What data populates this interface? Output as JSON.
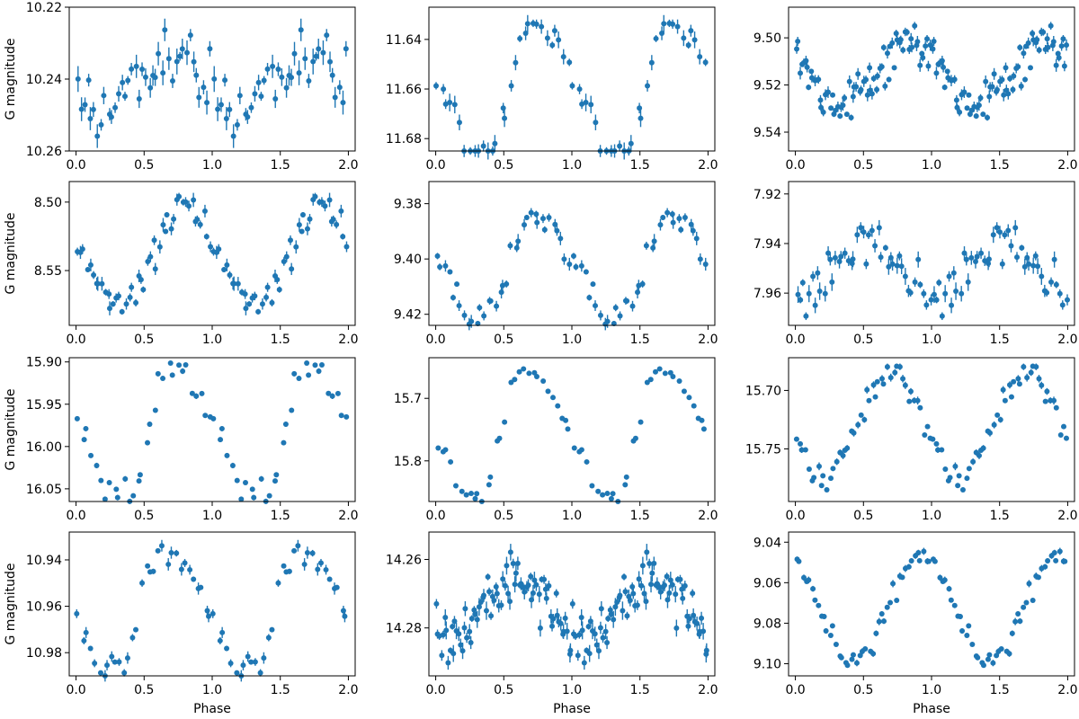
{
  "figure": {
    "xlabel": "Phase",
    "ylabel": "G magnitude",
    "point_color": "#1f77b4"
  },
  "chart_data": [
    {
      "type": "scatter",
      "row": 0,
      "col": 0,
      "xlim": [
        -0.05,
        2.05
      ],
      "ylim": [
        10.22,
        10.26
      ],
      "inverted_y": true,
      "x_ticks": [
        0,
        0.5,
        1,
        1.5,
        2
      ],
      "x_tick_labels": [
        "0.0",
        "0.5",
        "1.0",
        "1.5",
        "2.0"
      ],
      "y_ticks": [
        10.22,
        10.24,
        10.26
      ],
      "y_tick_labels": [
        "10.22",
        "10.24",
        "10.26"
      ],
      "shape": "noisy",
      "mean": 10.242,
      "amplitude": 0.008,
      "peak_phase": 0.7,
      "noise": 0.005,
      "error": 0.002,
      "n": 40
    },
    {
      "type": "scatter",
      "row": 0,
      "col": 1,
      "xlim": [
        -0.05,
        2.05
      ],
      "ylim": [
        11.627,
        11.685
      ],
      "inverted_y": true,
      "x_ticks": [
        0,
        0.5,
        1,
        1.5,
        2
      ],
      "x_tick_labels": [
        "0.0",
        "0.5",
        "1.0",
        "1.5",
        "2.0"
      ],
      "y_ticks": [
        11.64,
        11.66,
        11.68
      ],
      "y_tick_labels": [
        "11.64",
        "11.66",
        "11.68"
      ],
      "shape": "pulse",
      "mean": 11.66,
      "amplitude": 0.027,
      "peak_phase": 0.7,
      "noise": 0.003,
      "error": 0.002,
      "n": 30
    },
    {
      "type": "scatter",
      "row": 0,
      "col": 2,
      "xlim": [
        -0.05,
        2.05
      ],
      "ylim": [
        9.487,
        9.548
      ],
      "inverted_y": true,
      "x_ticks": [
        0,
        0.5,
        1,
        1.5,
        2
      ],
      "x_tick_labels": [
        "0.0",
        "0.5",
        "1.0",
        "1.5",
        "2.0"
      ],
      "y_ticks": [
        9.5,
        9.52,
        9.54
      ],
      "y_tick_labels": [
        "9.50",
        "9.52",
        "9.54"
      ],
      "shape": "sine",
      "mean": 9.515,
      "amplitude": 0.013,
      "peak_phase": 0.85,
      "noise": 0.004,
      "error": 0.0015,
      "n": 75
    },
    {
      "type": "scatter",
      "row": 1,
      "col": 0,
      "xlim": [
        -0.05,
        2.05
      ],
      "ylim": [
        8.485,
        8.59
      ],
      "inverted_y": true,
      "x_ticks": [
        0,
        0.5,
        1,
        1.5,
        2
      ],
      "x_tick_labels": [
        "0.0",
        "0.5",
        "1.0",
        "1.5",
        "2.0"
      ],
      "y_ticks": [
        8.5,
        8.55
      ],
      "y_tick_labels": [
        "8.50",
        "8.55"
      ],
      "shape": "sine",
      "mean": 8.54,
      "amplitude": 0.035,
      "peak_phase": 0.8,
      "noise": 0.006,
      "error": 0.003,
      "n": 45
    },
    {
      "type": "scatter",
      "row": 1,
      "col": 1,
      "xlim": [
        -0.05,
        2.05
      ],
      "ylim": [
        9.372,
        9.424
      ],
      "inverted_y": true,
      "x_ticks": [
        0,
        0.5,
        1,
        1.5,
        2
      ],
      "x_tick_labels": [
        "0.0",
        "0.5",
        "1.0",
        "1.5",
        "2.0"
      ],
      "y_ticks": [
        9.38,
        9.4,
        9.42
      ],
      "y_tick_labels": [
        "9.38",
        "9.40",
        "9.42"
      ],
      "shape": "pulse",
      "mean": 9.402,
      "amplitude": 0.017,
      "peak_phase": 0.7,
      "noise": 0.003,
      "error": 0.0015,
      "n": 35
    },
    {
      "type": "scatter",
      "row": 1,
      "col": 2,
      "xlim": [
        -0.05,
        2.05
      ],
      "ylim": [
        7.915,
        7.973
      ],
      "inverted_y": true,
      "x_ticks": [
        0,
        0.5,
        1,
        1.5,
        2
      ],
      "x_tick_labels": [
        "0.0",
        "0.5",
        "1.0",
        "1.5",
        "2.0"
      ],
      "y_ticks": [
        7.92,
        7.94,
        7.96
      ],
      "y_tick_labels": [
        "7.92",
        "7.94",
        "7.96"
      ],
      "shape": "noisy",
      "mean": 7.95,
      "amplitude": 0.012,
      "peak_phase": 0.55,
      "noise": 0.005,
      "error": 0.002,
      "n": 45
    },
    {
      "type": "scatter",
      "row": 2,
      "col": 0,
      "xlim": [
        -0.05,
        2.05
      ],
      "ylim": [
        15.895,
        16.065
      ],
      "inverted_y": true,
      "x_ticks": [
        0,
        0.5,
        1,
        1.5,
        2
      ],
      "x_tick_labels": [
        "0.0",
        "0.5",
        "1.0",
        "1.5",
        "2.0"
      ],
      "y_ticks": [
        15.9,
        15.95,
        16.0,
        16.05
      ],
      "y_tick_labels": [
        "15.90",
        "15.95",
        "16.00",
        "16.05"
      ],
      "shape": "pulse",
      "mean": 15.98,
      "amplitude": 0.075,
      "peak_phase": 0.68,
      "noise": 0.008,
      "error": 0.002,
      "n": 30
    },
    {
      "type": "scatter",
      "row": 2,
      "col": 1,
      "xlim": [
        -0.05,
        2.05
      ],
      "ylim": [
        15.635,
        15.865
      ],
      "inverted_y": true,
      "x_ticks": [
        0,
        0.5,
        1,
        1.5,
        2
      ],
      "x_tick_labels": [
        "0.0",
        "0.5",
        "1.0",
        "1.5",
        "2.0"
      ],
      "y_ticks": [
        15.7,
        15.8
      ],
      "y_tick_labels": [
        "15.7",
        "15.8"
      ],
      "shape": "pulse",
      "mean": 15.75,
      "amplitude": 0.1,
      "peak_phase": 0.63,
      "noise": 0.006,
      "error": 0.001,
      "n": 30
    },
    {
      "type": "scatter",
      "row": 2,
      "col": 2,
      "xlim": [
        -0.05,
        2.05
      ],
      "ylim": [
        15.672,
        15.795
      ],
      "inverted_y": true,
      "x_ticks": [
        0,
        0.5,
        1,
        1.5,
        2
      ],
      "x_tick_labels": [
        "0.0",
        "0.5",
        "1.0",
        "1.5",
        "2.0"
      ],
      "y_ticks": [
        15.7,
        15.75
      ],
      "y_tick_labels": [
        "15.70",
        "15.75"
      ],
      "shape": "sine",
      "mean": 15.73,
      "amplitude": 0.045,
      "peak_phase": 0.7,
      "noise": 0.006,
      "error": 0.002,
      "n": 45
    },
    {
      "type": "scatter",
      "row": 3,
      "col": 0,
      "xlim": [
        -0.05,
        2.05
      ],
      "ylim": [
        10.928,
        10.99
      ],
      "inverted_y": true,
      "x_ticks": [
        0,
        0.5,
        1,
        1.5,
        2
      ],
      "x_tick_labels": [
        "0.0",
        "0.5",
        "1.0",
        "1.5",
        "2.0"
      ],
      "y_ticks": [
        10.94,
        10.96,
        10.98
      ],
      "y_tick_labels": [
        "10.94",
        "10.96",
        "10.98"
      ],
      "shape": "pulse",
      "mean": 10.96,
      "amplitude": 0.024,
      "peak_phase": 0.62,
      "noise": 0.004,
      "error": 0.0015,
      "n": 32
    },
    {
      "type": "scatter",
      "row": 3,
      "col": 1,
      "xlim": [
        -0.05,
        2.05
      ],
      "ylim": [
        14.252,
        14.294
      ],
      "inverted_y": true,
      "x_ticks": [
        0,
        0.5,
        1,
        1.5,
        2
      ],
      "x_tick_labels": [
        "0.0",
        "0.5",
        "1.0",
        "1.5",
        "2.0"
      ],
      "y_ticks": [
        14.26,
        14.28
      ],
      "y_tick_labels": [
        "14.26",
        "14.28"
      ],
      "shape": "sine",
      "mean": 14.274,
      "amplitude": 0.008,
      "peak_phase": 0.6,
      "noise": 0.004,
      "error": 0.0015,
      "n": 80
    },
    {
      "type": "scatter",
      "row": 3,
      "col": 2,
      "xlim": [
        -0.05,
        2.05
      ],
      "ylim": [
        9.035,
        9.106
      ],
      "inverted_y": true,
      "x_ticks": [
        0,
        0.5,
        1,
        1.5,
        2
      ],
      "x_tick_labels": [
        "0.0",
        "0.5",
        "1.0",
        "1.5",
        "2.0"
      ],
      "y_ticks": [
        9.04,
        9.06,
        9.08,
        9.1
      ],
      "y_tick_labels": [
        "9.04",
        "9.06",
        "9.08",
        "9.10"
      ],
      "shape": "sine",
      "mean": 9.072,
      "amplitude": 0.026,
      "peak_phase": 0.92,
      "noise": 0.003,
      "error": 0.001,
      "n": 45
    }
  ]
}
